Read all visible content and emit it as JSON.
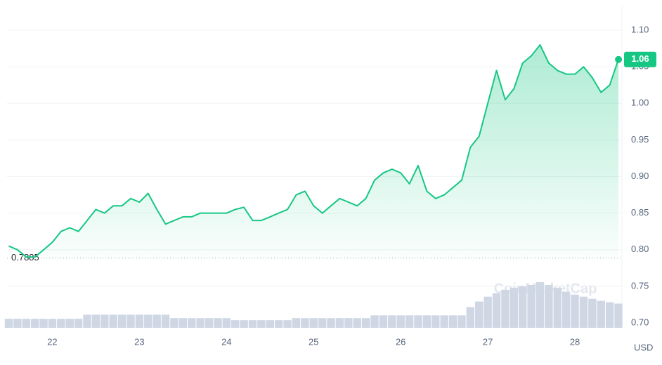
{
  "chart_data": {
    "type": "line",
    "x": [
      21.5,
      21.6,
      21.7,
      21.8,
      21.9,
      22.0,
      22.1,
      22.2,
      22.3,
      22.4,
      22.5,
      22.6,
      22.7,
      22.8,
      22.9,
      23.0,
      23.1,
      23.2,
      23.3,
      23.4,
      23.5,
      23.6,
      23.7,
      23.8,
      23.9,
      24.0,
      24.1,
      24.2,
      24.3,
      24.4,
      24.5,
      24.6,
      24.7,
      24.8,
      24.9,
      25.0,
      25.1,
      25.2,
      25.3,
      25.4,
      25.5,
      25.6,
      25.7,
      25.8,
      25.9,
      26.0,
      26.1,
      26.2,
      26.3,
      26.4,
      26.5,
      26.6,
      26.7,
      26.8,
      26.9,
      27.0,
      27.1,
      27.2,
      27.3,
      27.4,
      27.5,
      27.6,
      27.7,
      27.8,
      27.9,
      28.0,
      28.1,
      28.2,
      28.3,
      28.4,
      28.5
    ],
    "series": [
      {
        "color": "#16c784",
        "values": [
          0.805,
          0.8,
          0.79,
          0.79,
          0.8,
          0.81,
          0.825,
          0.83,
          0.825,
          0.84,
          0.855,
          0.85,
          0.86,
          0.86,
          0.87,
          0.865,
          0.877,
          0.855,
          0.835,
          0.84,
          0.845,
          0.845,
          0.85,
          0.85,
          0.85,
          0.85,
          0.855,
          0.858,
          0.84,
          0.84,
          0.845,
          0.85,
          0.855,
          0.875,
          0.88,
          0.86,
          0.85,
          0.86,
          0.87,
          0.865,
          0.86,
          0.87,
          0.895,
          0.905,
          0.91,
          0.905,
          0.89,
          0.915,
          0.88,
          0.87,
          0.875,
          0.885,
          0.895,
          0.94,
          0.955,
          1.0,
          1.045,
          1.005,
          1.02,
          1.055,
          1.065,
          1.08,
          1.055,
          1.045,
          1.04,
          1.04,
          1.05,
          1.035,
          1.015,
          1.025,
          1.06
        ]
      }
    ],
    "volume": {
      "color": "#cfd6e4",
      "values": [
        13,
        13,
        13,
        13,
        13,
        13,
        13,
        13,
        13,
        19,
        19,
        19,
        19,
        19,
        19,
        19,
        19,
        19,
        19,
        14,
        14,
        14,
        14,
        14,
        14,
        14,
        11,
        11,
        11,
        11,
        11,
        11,
        11,
        14,
        14,
        14,
        14,
        14,
        14,
        14,
        14,
        14,
        18,
        18,
        18,
        18,
        18,
        18,
        18,
        18,
        18,
        18,
        18,
        30,
        38,
        45,
        50,
        55,
        58,
        60,
        62,
        66,
        62,
        58,
        52,
        48,
        45,
        42,
        39,
        37,
        35
      ]
    },
    "open_price": {
      "value": 0.7885,
      "label": "0.7885"
    },
    "xlim": [
      21.48,
      28.54
    ],
    "xticks": [
      22,
      23,
      24,
      25,
      26,
      27,
      28
    ],
    "ylim": [
      0.6933,
      1.1336
    ],
    "yticks": [
      {
        "value": 0.7,
        "label": "0.70"
      },
      0.75,
      {
        "value": 0.8,
        "label": "0.80"
      },
      0.85,
      {
        "value": 0.9,
        "label": "0.90"
      },
      0.95,
      {
        "value": 1.0,
        "label": "1.00"
      },
      1.05,
      {
        "value": 1.1,
        "label": "1.10"
      }
    ],
    "grid": true,
    "currency": "USD",
    "watermark": "CoinMarketCap"
  }
}
